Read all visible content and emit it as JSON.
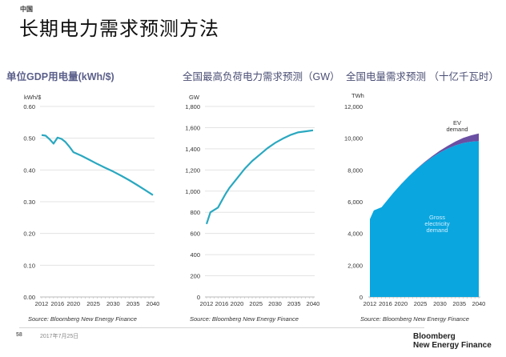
{
  "header": {
    "region": "中国",
    "title": "长期电力需求预测方法"
  },
  "footer": {
    "page_number": "58",
    "date": "2017年7月25日",
    "logo_line1": "Bloomberg",
    "logo_line2": "New Energy Finance"
  },
  "colors": {
    "line": "#2aa8c0",
    "gross_area": "#0aa6df",
    "ev_area": "#6a4fa3",
    "grid": "#e3e3e3",
    "title": "#5b5f8a"
  },
  "chart_data": [
    {
      "type": "line",
      "title": "单位GDP用电量(kWh/$)",
      "unit_label": "kWh/$",
      "ylim": [
        0,
        0.6
      ],
      "yticks": [
        "0.00",
        "0.10",
        "0.20",
        "0.30",
        "0.40",
        "0.50",
        "0.60"
      ],
      "ytick_values": [
        0,
        0.1,
        0.2,
        0.3,
        0.4,
        0.5,
        0.6
      ],
      "xlim": [
        2012,
        2040
      ],
      "xticks": [
        "2012",
        "2016",
        "2020",
        "2025",
        "2030",
        "2035",
        "2040"
      ],
      "grid": true,
      "x": [
        2012,
        2013,
        2014,
        2015,
        2016,
        2017,
        2018,
        2019,
        2020,
        2022,
        2024,
        2026,
        2028,
        2030,
        2032,
        2034,
        2036,
        2038,
        2040
      ],
      "y": [
        0.51,
        0.508,
        0.497,
        0.483,
        0.502,
        0.498,
        0.488,
        0.473,
        0.456,
        0.445,
        0.432,
        0.419,
        0.407,
        0.395,
        0.382,
        0.368,
        0.353,
        0.337,
        0.321
      ],
      "source": "Source: Bloomberg New Energy Finance"
    },
    {
      "type": "line",
      "title": "全国最高负荷电力需求预测（GW）",
      "unit_label": "GW",
      "ylim": [
        0,
        1800
      ],
      "yticks": [
        "0",
        "200",
        "400",
        "600",
        "800",
        "1,000",
        "1,200",
        "1,400",
        "1,600",
        "1,800"
      ],
      "ytick_values": [
        0,
        200,
        400,
        600,
        800,
        1000,
        1200,
        1400,
        1600,
        1800
      ],
      "xlim": [
        2012,
        2040
      ],
      "xticks": [
        "2012",
        "2016",
        "2020",
        "2025",
        "2030",
        "2035",
        "2040"
      ],
      "grid": true,
      "x": [
        2012,
        2013,
        2015,
        2016,
        2017,
        2018,
        2020,
        2022,
        2024,
        2026,
        2028,
        2030,
        2032,
        2034,
        2036,
        2038,
        2040
      ],
      "y": [
        690,
        800,
        845,
        910,
        975,
        1030,
        1120,
        1210,
        1285,
        1345,
        1405,
        1455,
        1495,
        1530,
        1555,
        1565,
        1575
      ],
      "source": "Source: Bloomberg New Energy Finance"
    },
    {
      "type": "area",
      "title": "全国电量需求预测 （十亿千瓦时）",
      "unit_label": "TWh",
      "ylim": [
        0,
        12000
      ],
      "yticks": [
        "0",
        "2,000",
        "4,000",
        "6,000",
        "8,000",
        "10,000",
        "12,000"
      ],
      "ytick_values": [
        0,
        2000,
        4000,
        6000,
        8000,
        10000,
        12000
      ],
      "xlim": [
        2012,
        2040
      ],
      "xticks": [
        "2012",
        "2016",
        "2020",
        "2025",
        "2030",
        "2035",
        "2040"
      ],
      "grid": false,
      "x": [
        2012,
        2013,
        2014,
        2015,
        2016,
        2018,
        2020,
        2022,
        2024,
        2026,
        2028,
        2030,
        2032,
        2034,
        2036,
        2038,
        2040
      ],
      "series": [
        {
          "name": "Gross electricity demand",
          "label_lines": [
            "Gross",
            "electricity",
            "demand"
          ],
          "values": [
            4900,
            5450,
            5550,
            5650,
            5950,
            6550,
            7100,
            7600,
            8050,
            8450,
            8800,
            9100,
            9350,
            9550,
            9700,
            9780,
            9820
          ]
        },
        {
          "name": "EV demand",
          "label_lines": [
            "EV",
            "demand"
          ],
          "values": [
            0,
            0,
            0,
            0,
            0,
            0,
            5,
            10,
            20,
            40,
            70,
            110,
            170,
            240,
            320,
            400,
            480
          ]
        }
      ],
      "source": "Source: Bloomberg New Energy Finance"
    }
  ]
}
